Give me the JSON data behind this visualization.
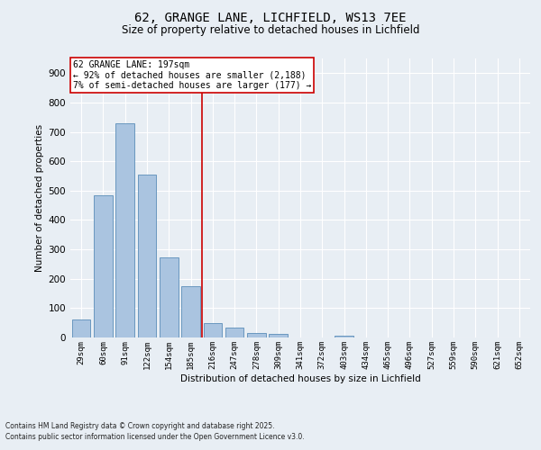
{
  "title_line1": "62, GRANGE LANE, LICHFIELD, WS13 7EE",
  "title_line2": "Size of property relative to detached houses in Lichfield",
  "xlabel": "Distribution of detached houses by size in Lichfield",
  "ylabel": "Number of detached properties",
  "categories": [
    "29sqm",
    "60sqm",
    "91sqm",
    "122sqm",
    "154sqm",
    "185sqm",
    "216sqm",
    "247sqm",
    "278sqm",
    "309sqm",
    "341sqm",
    "372sqm",
    "403sqm",
    "434sqm",
    "465sqm",
    "496sqm",
    "527sqm",
    "559sqm",
    "590sqm",
    "621sqm",
    "652sqm"
  ],
  "values": [
    62,
    485,
    730,
    555,
    272,
    175,
    48,
    35,
    14,
    12,
    0,
    0,
    6,
    0,
    0,
    0,
    0,
    0,
    0,
    0,
    0
  ],
  "bar_color": "#aac4e0",
  "bar_edge_color": "#5b8db8",
  "highlight_index": 5,
  "highlight_color": "#cc0000",
  "annotation_line1": "62 GRANGE LANE: 197sqm",
  "annotation_line2": "← 92% of detached houses are smaller (2,188)",
  "annotation_line3": "7% of semi-detached houses are larger (177) →",
  "annotation_box_color": "#cc0000",
  "ylim": [
    0,
    950
  ],
  "yticks": [
    0,
    100,
    200,
    300,
    400,
    500,
    600,
    700,
    800,
    900
  ],
  "background_color": "#e8eef4",
  "grid_color": "#ffffff",
  "footnote1": "Contains HM Land Registry data © Crown copyright and database right 2025.",
  "footnote2": "Contains public sector information licensed under the Open Government Licence v3.0."
}
